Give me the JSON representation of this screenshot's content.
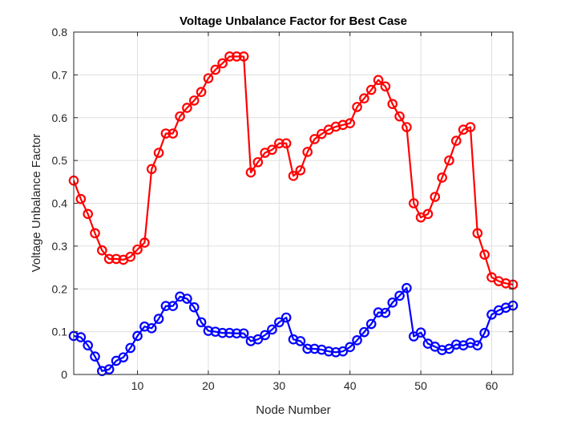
{
  "chart_data": {
    "type": "line",
    "title": "Voltage Unbalance Factor for Best Case",
    "xlabel": "Node Number",
    "ylabel": "Voltage Unbalance Factor",
    "xlim": [
      1,
      63
    ],
    "ylim": [
      0,
      0.8
    ],
    "xticks": [
      10,
      20,
      30,
      40,
      50,
      60
    ],
    "yticks": [
      0,
      0.1,
      0.2,
      0.3,
      0.4,
      0.5,
      0.6,
      0.7,
      0.8
    ],
    "ytick_labels": [
      "0",
      "0.1",
      "0.2",
      "0.3",
      "0.4",
      "0.5",
      "0.6",
      "0.7",
      "0.8"
    ],
    "grid": true,
    "series": [
      {
        "name": "series-red",
        "color": "#ff0000",
        "marker": "circle",
        "x": [
          1,
          2,
          3,
          4,
          5,
          6,
          7,
          8,
          9,
          10,
          11,
          12,
          13,
          14,
          15,
          16,
          17,
          18,
          19,
          20,
          21,
          22,
          23,
          24,
          25,
          26,
          27,
          28,
          29,
          30,
          31,
          32,
          33,
          34,
          35,
          36,
          37,
          38,
          39,
          40,
          41,
          42,
          43,
          44,
          45,
          46,
          47,
          48,
          49,
          50,
          51,
          52,
          53,
          54,
          55,
          56,
          57,
          58,
          59,
          60,
          61,
          62,
          63
        ],
        "values": [
          0.453,
          0.41,
          0.375,
          0.33,
          0.29,
          0.27,
          0.27,
          0.268,
          0.275,
          0.292,
          0.308,
          0.48,
          0.518,
          0.563,
          0.563,
          0.603,
          0.623,
          0.64,
          0.66,
          0.692,
          0.712,
          0.727,
          0.743,
          0.743,
          0.743,
          0.472,
          0.496,
          0.518,
          0.525,
          0.54,
          0.54,
          0.464,
          0.477,
          0.52,
          0.55,
          0.562,
          0.572,
          0.579,
          0.583,
          0.587,
          0.625,
          0.645,
          0.665,
          0.688,
          0.673,
          0.632,
          0.603,
          0.578,
          0.4,
          0.367,
          0.375,
          0.415,
          0.46,
          0.5,
          0.546,
          0.572,
          0.578,
          0.33,
          0.28,
          0.227,
          0.218,
          0.213,
          0.21
        ]
      },
      {
        "name": "series-blue",
        "color": "#0000ff",
        "marker": "circle",
        "x": [
          1,
          2,
          3,
          4,
          5,
          6,
          7,
          8,
          9,
          10,
          11,
          12,
          13,
          14,
          15,
          16,
          17,
          18,
          19,
          20,
          21,
          22,
          23,
          24,
          25,
          26,
          27,
          28,
          29,
          30,
          31,
          32,
          33,
          34,
          35,
          36,
          37,
          38,
          39,
          40,
          41,
          42,
          43,
          44,
          45,
          46,
          47,
          48,
          49,
          50,
          51,
          52,
          53,
          54,
          55,
          56,
          57,
          58,
          59,
          60,
          61,
          62,
          63
        ],
        "values": [
          0.09,
          0.087,
          0.068,
          0.042,
          0.008,
          0.012,
          0.032,
          0.04,
          0.062,
          0.09,
          0.112,
          0.108,
          0.13,
          0.16,
          0.16,
          0.182,
          0.177,
          0.157,
          0.122,
          0.102,
          0.1,
          0.097,
          0.097,
          0.096,
          0.096,
          0.078,
          0.082,
          0.092,
          0.105,
          0.122,
          0.133,
          0.082,
          0.078,
          0.06,
          0.06,
          0.058,
          0.054,
          0.052,
          0.054,
          0.064,
          0.08,
          0.099,
          0.118,
          0.145,
          0.144,
          0.168,
          0.184,
          0.202,
          0.089,
          0.098,
          0.072,
          0.065,
          0.057,
          0.06,
          0.07,
          0.068,
          0.074,
          0.068,
          0.097,
          0.14,
          0.15,
          0.156,
          0.161
        ]
      }
    ]
  }
}
